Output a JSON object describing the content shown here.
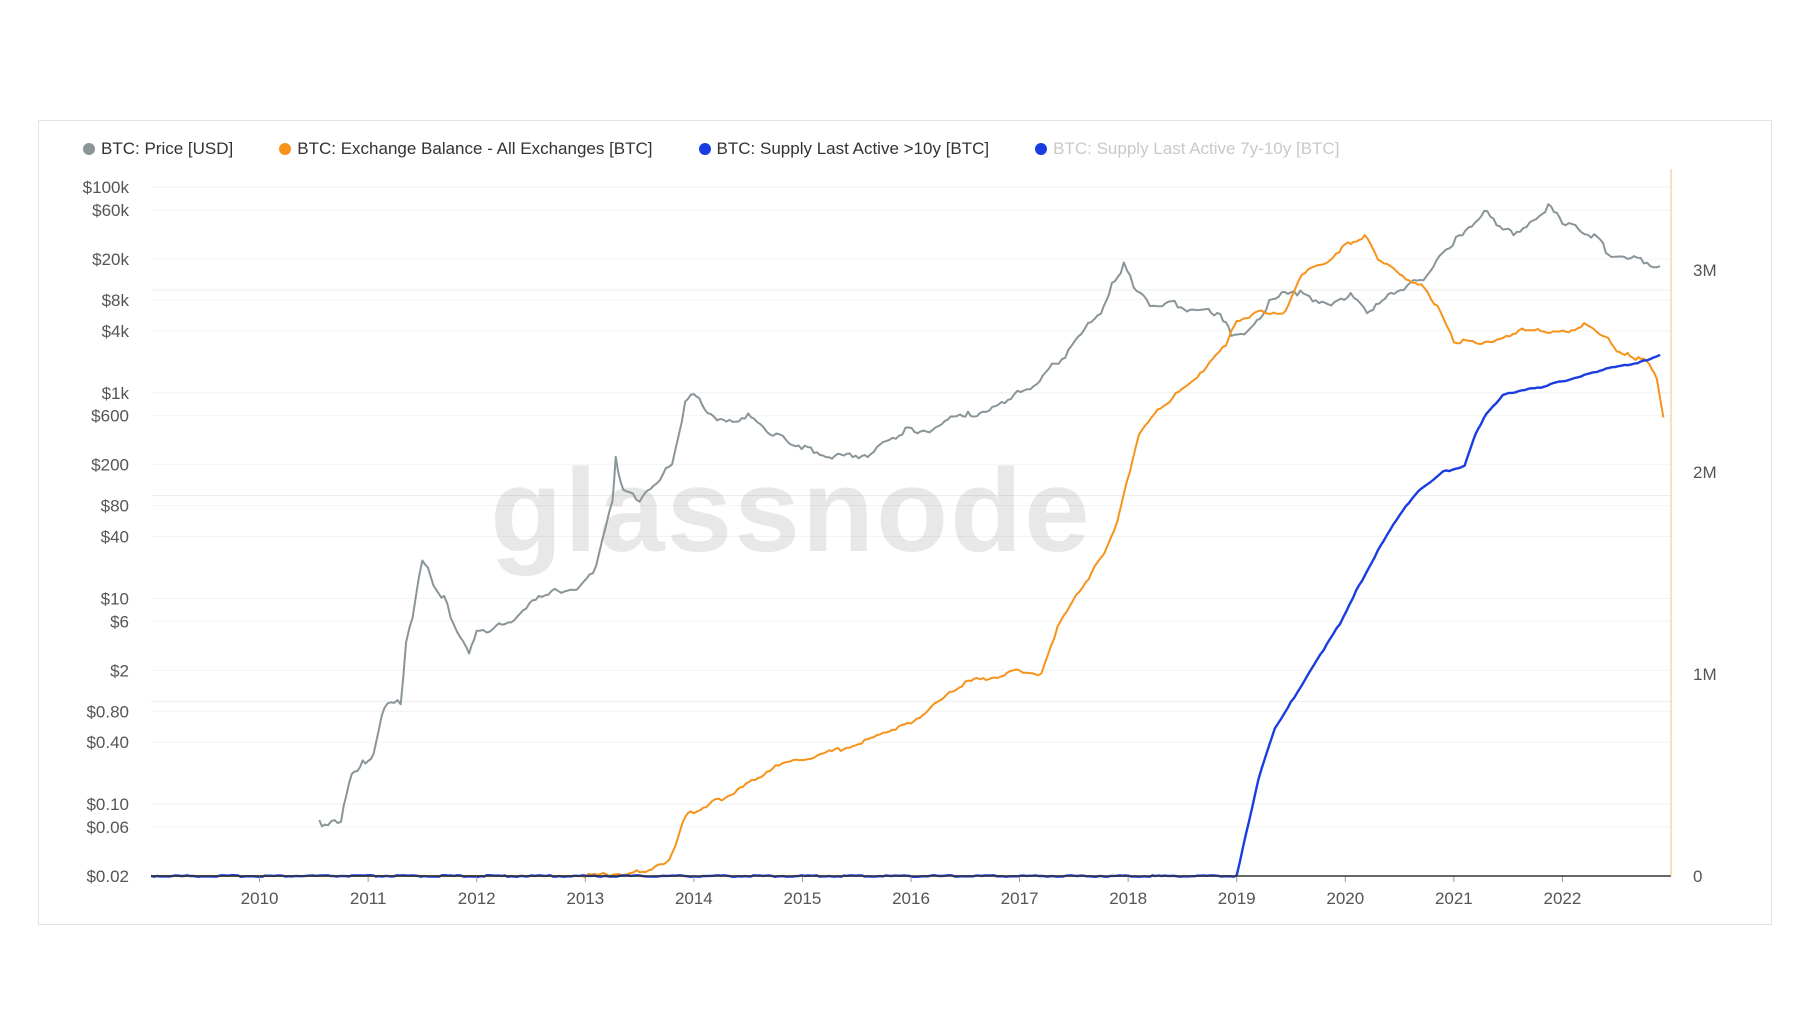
{
  "watermark": "glassnode",
  "legend": [
    {
      "label": "BTC: Price [USD]",
      "color": "#8a9599",
      "active": true
    },
    {
      "label": "BTC: Exchange Balance - All Exchanges [BTC]",
      "color": "#f7931a",
      "active": true
    },
    {
      "label": "BTC: Supply Last Active >10y [BTC]",
      "color": "#1a3de0",
      "active": true
    },
    {
      "label": "BTC: Supply Last Active 7y-10y [BTC]",
      "color": "#1a3de0",
      "active": false
    }
  ],
  "chart_data": {
    "type": "line",
    "x_axis": {
      "ticks": [
        "2010",
        "2011",
        "2012",
        "2013",
        "2014",
        "2015",
        "2016",
        "2017",
        "2018",
        "2019",
        "2020",
        "2021",
        "2022"
      ],
      "range": [
        2009.0,
        2023.0
      ]
    },
    "y_left": {
      "scale": "log",
      "range": [
        0.02,
        150000
      ],
      "ticks": [
        {
          "label": "$100k",
          "value": 100000
        },
        {
          "label": "$60k",
          "value": 60000
        },
        {
          "label": "$20k",
          "value": 20000
        },
        {
          "label": "$8k",
          "value": 8000
        },
        {
          "label": "$4k",
          "value": 4000
        },
        {
          "label": "$1k",
          "value": 1000
        },
        {
          "label": "$600",
          "value": 600
        },
        {
          "label": "$200",
          "value": 200
        },
        {
          "label": "$80",
          "value": 80
        },
        {
          "label": "$40",
          "value": 40
        },
        {
          "label": "$10",
          "value": 10
        },
        {
          "label": "$6",
          "value": 6
        },
        {
          "label": "$2",
          "value": 2
        },
        {
          "label": "$0.80",
          "value": 0.8
        },
        {
          "label": "$0.40",
          "value": 0.4
        },
        {
          "label": "$0.10",
          "value": 0.1
        },
        {
          "label": "$0.06",
          "value": 0.06
        },
        {
          "label": "$0.02",
          "value": 0.02
        }
      ]
    },
    "y_right": {
      "scale": "linear",
      "range": [
        0,
        3500000
      ],
      "ticks": [
        {
          "label": "0",
          "value": 0
        },
        {
          "label": "1M",
          "value": 1000000
        },
        {
          "label": "2M",
          "value": 2000000
        },
        {
          "label": "3M",
          "value": 3000000
        }
      ]
    },
    "series": [
      {
        "name": "BTC: Price [USD]",
        "axis": "left",
        "color": "#8a9599",
        "x": [
          2010.55,
          2010.6,
          2010.75,
          2010.85,
          2010.95,
          2011.05,
          2011.15,
          2011.3,
          2011.35,
          2011.44,
          2011.5,
          2011.6,
          2011.7,
          2011.85,
          2011.93,
          2012.0,
          2012.15,
          2012.4,
          2012.6,
          2012.75,
          2012.95,
          2013.1,
          2013.25,
          2013.28,
          2013.35,
          2013.5,
          2013.6,
          2013.8,
          2013.92,
          2014.0,
          2014.1,
          2014.3,
          2014.5,
          2014.7,
          2014.85,
          2015.05,
          2015.3,
          2015.6,
          2015.8,
          2015.95,
          2016.2,
          2016.45,
          2016.55,
          2016.75,
          2016.95,
          2017.1,
          2017.3,
          2017.45,
          2017.6,
          2017.75,
          2017.85,
          2017.96,
          2018.05,
          2018.2,
          2018.4,
          2018.6,
          2018.85,
          2018.95,
          2019.1,
          2019.3,
          2019.5,
          2019.7,
          2019.9,
          2020.05,
          2020.2,
          2020.45,
          2020.6,
          2020.75,
          2020.9,
          2021.05,
          2021.28,
          2021.45,
          2021.55,
          2021.7,
          2021.87,
          2022.0,
          2022.15,
          2022.35,
          2022.45,
          2022.6,
          2022.75,
          2022.9
        ],
        "y": [
          0.07,
          0.06,
          0.07,
          0.2,
          0.25,
          0.3,
          0.9,
          1.0,
          3.5,
          10,
          25,
          14,
          10,
          4,
          3,
          5,
          5,
          7,
          11,
          12,
          13,
          20,
          90,
          230,
          110,
          90,
          120,
          200,
          800,
          1000,
          700,
          500,
          600,
          400,
          350,
          280,
          240,
          250,
          350,
          430,
          430,
          650,
          600,
          700,
          950,
          1100,
          1800,
          2500,
          4200,
          6000,
          11000,
          17500,
          11000,
          7000,
          7500,
          6300,
          6000,
          3700,
          3800,
          7500,
          10000,
          8200,
          7500,
          9000,
          6000,
          9500,
          11500,
          13000,
          24000,
          33000,
          58000,
          40000,
          35000,
          45000,
          65000,
          47000,
          40000,
          30000,
          20000,
          21000,
          19000,
          17000
        ]
      },
      {
        "name": "BTC: Exchange Balance - All Exchanges [BTC]",
        "axis": "right",
        "color": "#f7931a",
        "x": [
          2009.0,
          2012.0,
          2013.0,
          2013.5,
          2013.75,
          2013.85,
          2013.92,
          2014.0,
          2014.2,
          2014.4,
          2014.7,
          2015.0,
          2015.3,
          2015.6,
          2015.8,
          2016.0,
          2016.3,
          2016.5,
          2016.8,
          2017.0,
          2017.2,
          2017.35,
          2017.55,
          2017.75,
          2017.9,
          2018.1,
          2018.3,
          2018.55,
          2018.75,
          2018.9,
          2019.0,
          2019.2,
          2019.45,
          2019.6,
          2019.8,
          2020.0,
          2020.18,
          2020.3,
          2020.5,
          2020.7,
          2020.85,
          2021.0,
          2021.2,
          2021.4,
          2021.6,
          2021.8,
          2022.0,
          2022.2,
          2022.4,
          2022.5,
          2022.6,
          2022.7,
          2022.8,
          2022.87,
          2022.93
        ],
        "y": [
          0,
          0,
          0,
          20000,
          60000,
          180000,
          300000,
          320000,
          370000,
          420000,
          530000,
          580000,
          620000,
          670000,
          720000,
          760000,
          880000,
          960000,
          990000,
          1020000,
          1000000,
          1230000,
          1410000,
          1570000,
          1750000,
          2190000,
          2320000,
          2430000,
          2540000,
          2630000,
          2750000,
          2790000,
          2790000,
          2980000,
          3030000,
          3120000,
          3170000,
          3060000,
          2980000,
          2920000,
          2820000,
          2650000,
          2640000,
          2650000,
          2700000,
          2700000,
          2690000,
          2730000,
          2670000,
          2600000,
          2580000,
          2560000,
          2540000,
          2460000,
          2270000
        ]
      },
      {
        "name": "BTC: Supply Last Active >10y [BTC]",
        "axis": "right",
        "color": "#1a3de0",
        "x": [
          2009.0,
          2019.0,
          2019.2,
          2019.35,
          2019.5,
          2019.65,
          2019.8,
          2019.95,
          2020.1,
          2020.3,
          2020.5,
          2020.7,
          2020.9,
          2021.1,
          2021.2,
          2021.3,
          2021.45,
          2021.6,
          2021.8,
          2022.0,
          2022.2,
          2022.4,
          2022.6,
          2022.75,
          2022.9
        ],
        "y": [
          0,
          0,
          480000,
          730000,
          860000,
          990000,
          1120000,
          1250000,
          1410000,
          1610000,
          1790000,
          1920000,
          2000000,
          2030000,
          2190000,
          2290000,
          2380000,
          2400000,
          2420000,
          2450000,
          2480000,
          2510000,
          2530000,
          2550000,
          2580000
        ]
      }
    ]
  }
}
